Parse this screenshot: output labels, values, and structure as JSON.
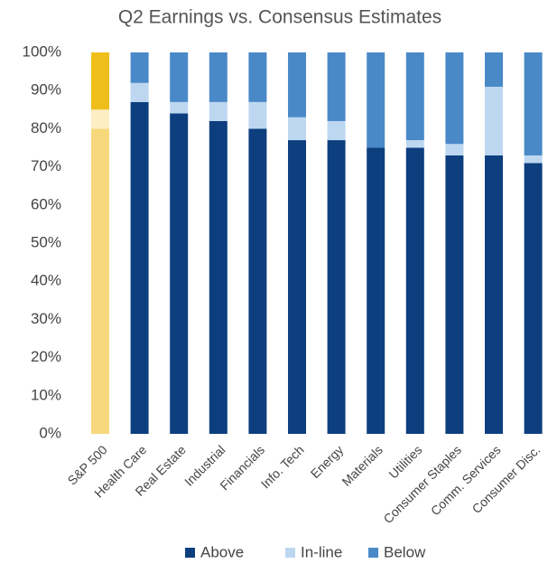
{
  "chart_data": {
    "type": "stacked_bar",
    "title": "Q2 Earnings vs. Consensus Estimates",
    "categories": [
      "S&P 500",
      "Health Care",
      "Real Estate",
      "Industrial",
      "Financials",
      "Info. Tech",
      "Energy",
      "Materials",
      "Utilities",
      "Consumer Staples",
      "Comm. Services",
      "Consumer Disc."
    ],
    "series": [
      {
        "name": "Above",
        "color": "#0d3f7f",
        "highlight_color": "#f8d87c",
        "values": [
          80,
          87,
          84,
          82,
          80,
          77,
          77,
          75,
          75,
          73,
          73,
          71
        ]
      },
      {
        "name": "In-line",
        "color": "#bdd7f1",
        "highlight_color": "#fdeec4",
        "values": [
          5,
          5,
          3,
          5,
          7,
          6,
          5,
          0,
          2,
          3,
          18,
          2
        ]
      },
      {
        "name": "Below",
        "color": "#4a89c8",
        "highlight_color": "#f0be1b",
        "values": [
          15,
          8,
          13,
          13,
          13,
          17,
          18,
          25,
          23,
          24,
          9,
          27
        ]
      }
    ],
    "highlight": 0,
    "ylim": [
      0,
      100
    ],
    "yticks": [
      {
        "value": 0,
        "label": "0%"
      },
      {
        "value": 10,
        "label": "10%"
      },
      {
        "value": 20,
        "label": "20%"
      },
      {
        "value": 30,
        "label": "30%"
      },
      {
        "value": 40,
        "label": "40%"
      },
      {
        "value": 50,
        "label": "50%"
      },
      {
        "value": 60,
        "label": "60%"
      },
      {
        "value": 70,
        "label": "70%"
      },
      {
        "value": 80,
        "label": "80%"
      },
      {
        "value": 90,
        "label": "90%"
      },
      {
        "value": 100,
        "label": "100%"
      }
    ],
    "grid": false,
    "legend": "bottom"
  }
}
